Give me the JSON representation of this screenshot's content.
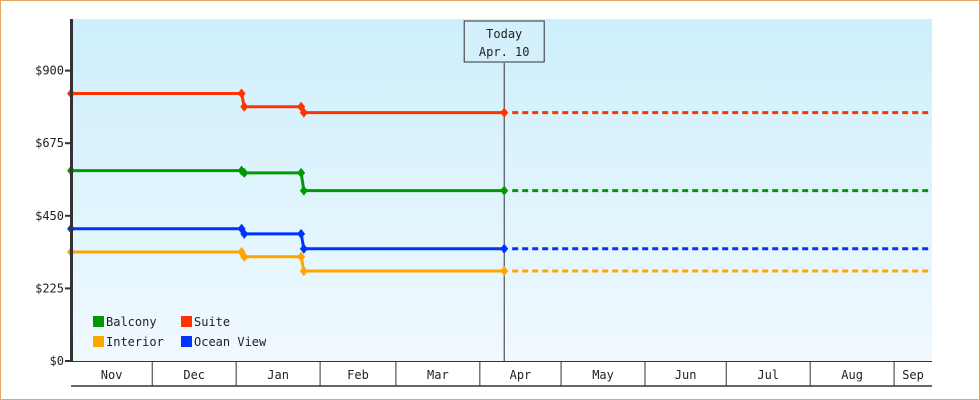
{
  "chart_data": {
    "type": "line",
    "title": "",
    "xlabel": "",
    "ylabel": "",
    "ylim": [
      0,
      1060
    ],
    "y_ticks": [
      "$0",
      "$225",
      "$450",
      "$675",
      "$900"
    ],
    "y_tick_values": [
      0,
      225,
      450,
      675,
      900
    ],
    "x_ticks": [
      "Nov",
      "Dec",
      "Jan",
      "Feb",
      "Mar",
      "Apr",
      "May",
      "Jun",
      "Jul",
      "Aug",
      "Sep"
    ],
    "x_range": [
      "Nov 1",
      "Sep 15"
    ],
    "step": true,
    "grid": false,
    "legend_position": "bottom-left",
    "today": {
      "line1": "Today",
      "line2": "Apr. 10",
      "date": "Apr 10"
    },
    "projection_end": "Sep 15",
    "series": [
      {
        "name": "Balcony",
        "color": "#009900",
        "points": [
          [
            "Nov 1",
            590
          ],
          [
            "Jan 3",
            590
          ],
          [
            "Jan 4",
            583
          ],
          [
            "Jan 25",
            583
          ],
          [
            "Jan 26",
            528
          ],
          [
            "Apr 10",
            528
          ]
        ]
      },
      {
        "name": "Suite",
        "color": "#ff3300",
        "points": [
          [
            "Nov 1",
            829
          ],
          [
            "Jan 3",
            829
          ],
          [
            "Jan 4",
            788
          ],
          [
            "Jan 25",
            788
          ],
          [
            "Jan 26",
            770
          ],
          [
            "Apr 10",
            770
          ]
        ]
      },
      {
        "name": "Interior",
        "color": "#ffa500",
        "points": [
          [
            "Nov 1",
            338
          ],
          [
            "Jan 3",
            338
          ],
          [
            "Jan 4",
            323
          ],
          [
            "Jan 25",
            323
          ],
          [
            "Jan 26",
            279
          ],
          [
            "Apr 10",
            279
          ]
        ]
      },
      {
        "name": "Ocean View",
        "color": "#0033ff",
        "points": [
          [
            "Nov 1",
            410
          ],
          [
            "Jan 3",
            410
          ],
          [
            "Jan 4",
            394
          ],
          [
            "Jan 25",
            394
          ],
          [
            "Jan 26",
            348
          ],
          [
            "Apr 10",
            348
          ]
        ]
      }
    ]
  }
}
